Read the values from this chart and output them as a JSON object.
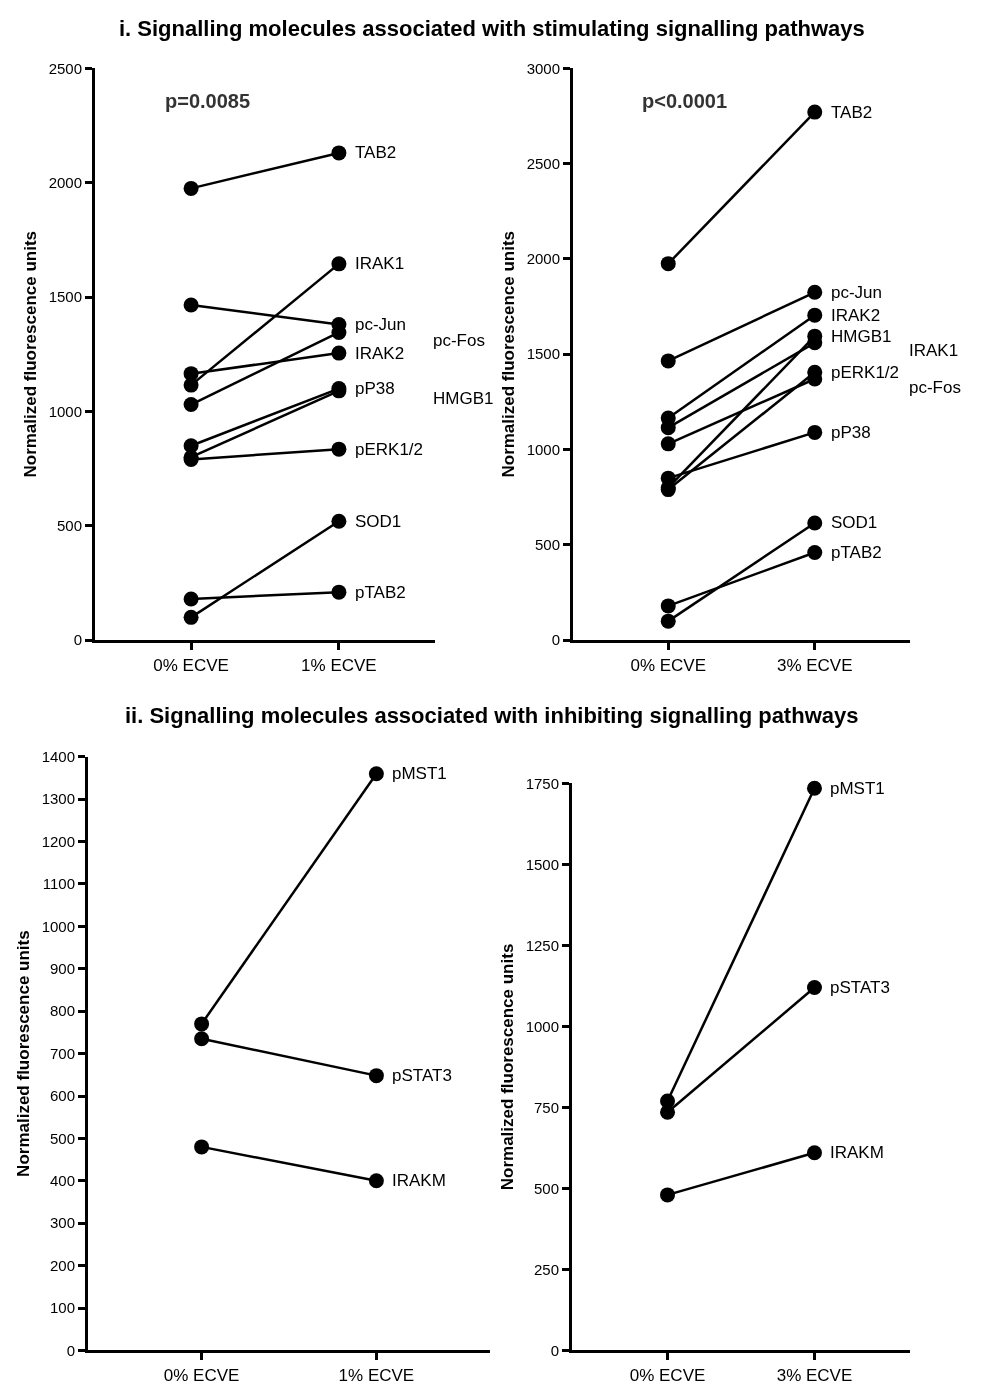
{
  "chart_data": [
    {
      "type": "line",
      "title": "i. Signalling molecules associated with stimulating signalling pathways",
      "categories": [
        "0% ECVE",
        "1% ECVE"
      ],
      "ylabel": "Normalized fluorescence units",
      "ylim": [
        0,
        2500
      ],
      "yticks": [
        0,
        500,
        1000,
        1500,
        2000,
        2500
      ],
      "marker": "circle",
      "annotations": [
        "p=0.0085"
      ],
      "series": [
        {
          "name": "TAB2",
          "color": "#000000",
          "values": [
            1975,
            2130
          ]
        },
        {
          "name": "IRAK1",
          "color": "#000000",
          "values": [
            1115,
            1645
          ]
        },
        {
          "name": "pc-Jun",
          "color": "#000000",
          "values": [
            1465,
            1380
          ]
        },
        {
          "name": "pc-Fos",
          "color": "#000000",
          "values": [
            1030,
            1345
          ]
        },
        {
          "name": "IRAK2",
          "color": "#000000",
          "values": [
            1165,
            1255
          ]
        },
        {
          "name": "pP38",
          "color": "#000000",
          "values": [
            850,
            1100
          ]
        },
        {
          "name": "HMGB1",
          "color": "#000000",
          "values": [
            800,
            1090
          ]
        },
        {
          "name": "pERK1/2",
          "color": "#000000",
          "values": [
            790,
            835
          ]
        },
        {
          "name": "SOD1",
          "color": "#000000",
          "values": [
            100,
            520
          ]
        },
        {
          "name": "pTAB2",
          "color": "#000000",
          "values": [
            180,
            210
          ]
        }
      ]
    },
    {
      "type": "line",
      "categories": [
        "0% ECVE",
        "3% ECVE"
      ],
      "ylabel": "Normalized fluorescence units",
      "ylim": [
        0,
        3000
      ],
      "yticks": [
        0,
        500,
        1000,
        1500,
        2000,
        2500,
        3000
      ],
      "marker": "circle",
      "annotations": [
        "p<0.0001"
      ],
      "series": [
        {
          "name": "TAB2",
          "color": "#000000",
          "values": [
            1975,
            2770
          ]
        },
        {
          "name": "pc-Jun",
          "color": "#000000",
          "values": [
            1465,
            1825
          ]
        },
        {
          "name": "IRAK2",
          "color": "#000000",
          "values": [
            1165,
            1705
          ]
        },
        {
          "name": "IRAK1",
          "color": "#000000",
          "values": [
            1115,
            1560
          ]
        },
        {
          "name": "HMGB1",
          "color": "#000000",
          "values": [
            800,
            1595
          ]
        },
        {
          "name": "pERK1/2",
          "color": "#000000",
          "values": [
            790,
            1405
          ]
        },
        {
          "name": "pc-Fos",
          "color": "#000000",
          "values": [
            1030,
            1370
          ]
        },
        {
          "name": "pP38",
          "color": "#000000",
          "values": [
            850,
            1090
          ]
        },
        {
          "name": "SOD1",
          "color": "#000000",
          "values": [
            100,
            615
          ]
        },
        {
          "name": "pTAB2",
          "color": "#000000",
          "values": [
            180,
            460
          ]
        }
      ]
    },
    {
      "type": "line",
      "title": "ii. Signalling molecules associated with inhibiting signalling pathways",
      "categories": [
        "0% ECVE",
        "1% ECVE"
      ],
      "ylabel": "Normalized fluorescence units",
      "ylim": [
        0,
        1400
      ],
      "yticks": [
        0,
        100,
        200,
        300,
        400,
        500,
        600,
        700,
        800,
        900,
        1000,
        1100,
        1200,
        1300,
        1400
      ],
      "marker": "circle",
      "series": [
        {
          "name": "pMST1",
          "color": "#000000",
          "values": [
            770,
            1360
          ]
        },
        {
          "name": "pSTAT3",
          "color": "#000000",
          "values": [
            735,
            648
          ]
        },
        {
          "name": "IRAKM",
          "color": "#000000",
          "values": [
            480,
            400
          ]
        }
      ]
    },
    {
      "type": "line",
      "categories": [
        "0% ECVE",
        "3% ECVE"
      ],
      "ylabel": "Normalized fluorescence units",
      "ylim": [
        0,
        1750
      ],
      "yticks": [
        0,
        250,
        500,
        750,
        1000,
        1250,
        1500,
        1750
      ],
      "marker": "circle",
      "series": [
        {
          "name": "pMST1",
          "color": "#000000",
          "values": [
            770,
            1735
          ]
        },
        {
          "name": "pSTAT3",
          "color": "#000000",
          "values": [
            735,
            1120
          ]
        },
        {
          "name": "IRAKM",
          "color": "#000000",
          "values": [
            480,
            610
          ]
        }
      ]
    }
  ]
}
